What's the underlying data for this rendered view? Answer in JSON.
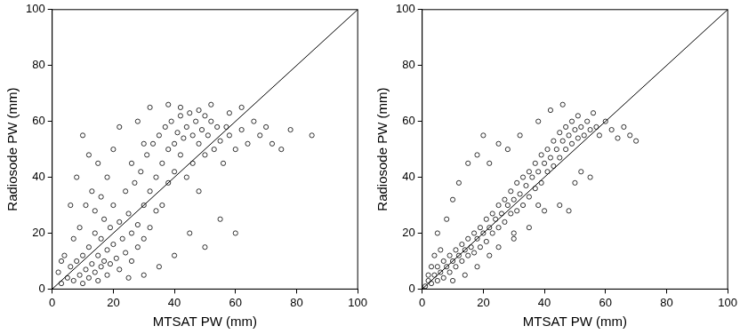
{
  "chart_data": [
    {
      "type": "scatter",
      "x_label": "MTSAT PW (mm)",
      "y_label": "Radiosode PW (mm)",
      "xlim": [
        0,
        100
      ],
      "ylim": [
        0,
        100
      ],
      "xticks": [
        0,
        20,
        40,
        60,
        80,
        100
      ],
      "yticks": [
        0,
        20,
        40,
        60,
        80,
        100
      ],
      "grid": false,
      "series": [
        {
          "color": "#000000",
          "marker": "circle",
          "x": [
            3,
            5,
            6,
            7,
            8,
            9,
            10,
            10,
            11,
            12,
            12,
            13,
            14,
            14,
            15,
            15,
            16,
            16,
            17,
            17,
            18,
            18,
            19,
            19,
            20,
            20,
            21,
            22,
            22,
            23,
            24,
            24,
            25,
            26,
            26,
            27,
            28,
            28,
            29,
            30,
            30,
            31,
            32,
            32,
            33,
            34,
            34,
            35,
            36,
            36,
            37,
            38,
            38,
            39,
            40,
            40,
            41,
            42,
            42,
            43,
            44,
            44,
            45,
            46,
            46,
            47,
            48,
            48,
            49,
            50,
            50,
            51,
            52,
            53,
            54,
            55,
            56,
            57,
            58,
            60,
            62,
            64,
            66,
            68,
            70,
            72,
            75,
            78,
            85,
            45,
            50,
            55,
            40,
            35,
            60,
            30,
            25,
            8,
            10,
            12,
            6,
            15,
            20,
            4,
            2,
            3,
            7,
            9,
            11,
            13,
            28,
            32,
            22,
            18,
            14,
            16,
            38,
            42,
            48,
            52,
            58,
            62,
            26,
            30
          ],
          "values": [
            2,
            4,
            8,
            3,
            10,
            5,
            12,
            2,
            7,
            15,
            4,
            9,
            20,
            6,
            12,
            3,
            18,
            8,
            25,
            10,
            14,
            5,
            22,
            9,
            16,
            30,
            11,
            24,
            7,
            18,
            35,
            13,
            27,
            20,
            10,
            38,
            23,
            15,
            42,
            30,
            18,
            48,
            35,
            22,
            52,
            40,
            28,
            55,
            45,
            30,
            58,
            50,
            38,
            60,
            52,
            42,
            56,
            62,
            48,
            54,
            58,
            40,
            63,
            55,
            45,
            60,
            52,
            35,
            57,
            62,
            48,
            55,
            60,
            50,
            58,
            53,
            45,
            58,
            55,
            50,
            57,
            52,
            60,
            55,
            58,
            52,
            50,
            57,
            55,
            20,
            15,
            25,
            12,
            8,
            20,
            5,
            4,
            40,
            55,
            48,
            30,
            45,
            50,
            12,
            6,
            10,
            18,
            22,
            30,
            35,
            60,
            65,
            58,
            40,
            28,
            33,
            66,
            65,
            64,
            66,
            63,
            65,
            45,
            52
          ]
        },
        {
          "type": "line",
          "color": "#000000",
          "line_style": "solid",
          "x": [
            0,
            100
          ],
          "values": [
            0,
            100
          ]
        }
      ]
    },
    {
      "type": "scatter",
      "x_label": "MTSAT PW (mm)",
      "y_label": "Radiosode PW (mm)",
      "xlim": [
        0,
        100
      ],
      "ylim": [
        0,
        100
      ],
      "xticks": [
        0,
        20,
        40,
        60,
        80,
        100
      ],
      "yticks": [
        0,
        20,
        40,
        60,
        80,
        100
      ],
      "grid": false,
      "series": [
        {
          "color": "#000000",
          "marker": "circle",
          "x": [
            1,
            2,
            3,
            4,
            5,
            5,
            6,
            7,
            7,
            8,
            9,
            9,
            10,
            11,
            11,
            12,
            13,
            13,
            14,
            15,
            15,
            16,
            17,
            17,
            18,
            19,
            19,
            20,
            21,
            21,
            22,
            23,
            23,
            24,
            25,
            25,
            26,
            27,
            27,
            28,
            29,
            29,
            30,
            31,
            31,
            32,
            33,
            33,
            34,
            35,
            35,
            36,
            37,
            37,
            38,
            39,
            39,
            40,
            41,
            41,
            42,
            43,
            43,
            44,
            45,
            45,
            46,
            47,
            47,
            48,
            49,
            49,
            50,
            51,
            51,
            52,
            53,
            54,
            55,
            56,
            57,
            58,
            60,
            62,
            64,
            66,
            68,
            70,
            45,
            50,
            55,
            40,
            35,
            48,
            30,
            8,
            10,
            12,
            5,
            15,
            20,
            18,
            25,
            22,
            28,
            32,
            38,
            42,
            46,
            3,
            2,
            4,
            14,
            18,
            22,
            25,
            30,
            6,
            10,
            38,
            52
          ],
          "values": [
            1,
            3,
            2,
            5,
            3,
            8,
            6,
            4,
            10,
            8,
            6,
            12,
            10,
            8,
            14,
            12,
            10,
            16,
            14,
            12,
            18,
            15,
            13,
            20,
            18,
            15,
            22,
            20,
            17,
            25,
            22,
            20,
            27,
            25,
            22,
            30,
            27,
            24,
            32,
            30,
            27,
            35,
            32,
            28,
            38,
            34,
            30,
            40,
            37,
            33,
            42,
            40,
            36,
            45,
            42,
            38,
            48,
            45,
            42,
            50,
            47,
            44,
            53,
            50,
            47,
            56,
            53,
            50,
            58,
            55,
            52,
            60,
            57,
            54,
            62,
            58,
            55,
            60,
            57,
            63,
            58,
            55,
            60,
            57,
            54,
            58,
            55,
            53,
            30,
            38,
            40,
            28,
            22,
            28,
            20,
            25,
            32,
            38,
            20,
            45,
            55,
            48,
            52,
            45,
            50,
            55,
            60,
            64,
            66,
            8,
            5,
            12,
            5,
            8,
            12,
            15,
            18,
            14,
            3,
            30,
            42
          ]
        },
        {
          "type": "line",
          "color": "#000000",
          "line_style": "solid",
          "x": [
            0,
            100
          ],
          "values": [
            0,
            100
          ]
        }
      ]
    }
  ]
}
